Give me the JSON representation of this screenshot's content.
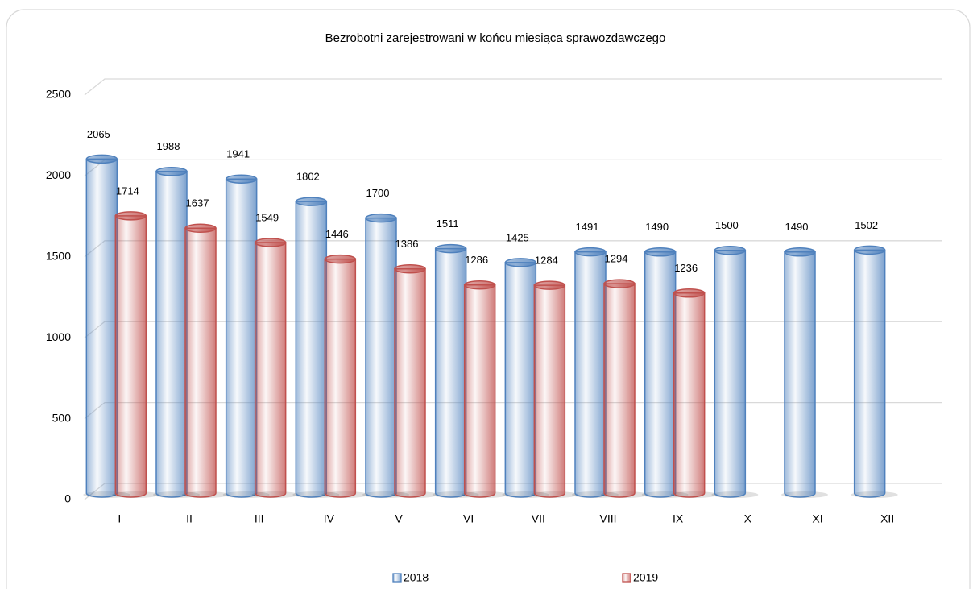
{
  "chart_data": {
    "type": "bar3d",
    "title": "Bezrobotni zarejestrowani w końcu miesiąca sprawozdawczego",
    "categories": [
      "I",
      "II",
      "III",
      "IV",
      "V",
      "VI",
      "VII",
      "VIII",
      "IX",
      "X",
      "XI",
      "XII"
    ],
    "series": [
      {
        "name": "2018",
        "color": "#4f81bd",
        "values": [
          2065,
          1988,
          1941,
          1802,
          1700,
          1511,
          1425,
          1491,
          1490,
          1500,
          1490,
          1502
        ]
      },
      {
        "name": "2019",
        "color": "#c0504d",
        "values": [
          1714,
          1637,
          1549,
          1446,
          1386,
          1286,
          1284,
          1294,
          1236,
          null,
          null,
          null
        ]
      }
    ],
    "ylim": [
      0,
      2500
    ],
    "yticks": [
      0,
      500,
      1000,
      1500,
      2000,
      2500
    ],
    "grid": true,
    "legend": "bottom"
  }
}
